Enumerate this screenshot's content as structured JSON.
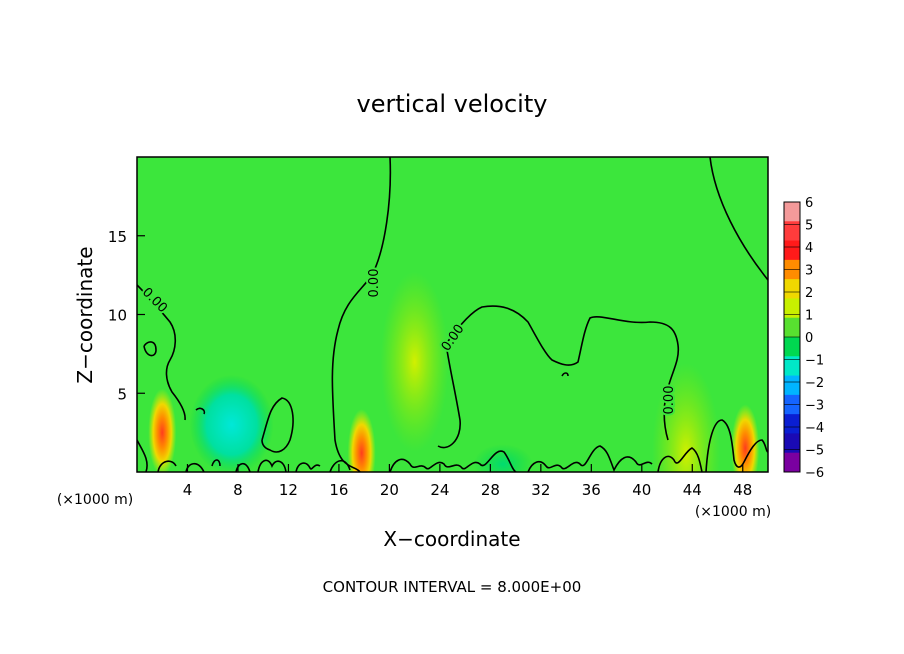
{
  "chart_data": {
    "type": "heatmap",
    "title": "vertical velocity",
    "xlabel": "X−coordinate",
    "ylabel": "Z−coordinate",
    "x_unit_left": "(×1000 m)",
    "x_unit_right": "(×1000 m)",
    "xlim": [
      0,
      50
    ],
    "ylim": [
      0,
      20
    ],
    "x_ticks": [
      4,
      8,
      12,
      16,
      20,
      24,
      28,
      32,
      36,
      40,
      44,
      48
    ],
    "y_ticks": [
      5,
      10,
      15
    ],
    "contour_label": "0.00",
    "footer": "CONTOUR INTERVAL = 8.000E+00",
    "colorbar": {
      "levels": [
        "6",
        "5",
        "4",
        "3",
        "2",
        "1",
        "0",
        "−1",
        "−2",
        "−3",
        "−4",
        "−5",
        "−6"
      ],
      "colors": [
        "#f49a9a",
        "#ff3c3c",
        "#ff1a1a",
        "#ff8c00",
        "#f0d800",
        "#c8f000",
        "#58e030",
        "#00d850",
        "#00e8c8",
        "#00b4ff",
        "#1464ff",
        "#0a1ed2",
        "#1a0ab4",
        "#7a00a0"
      ]
    },
    "hotspots": [
      {
        "x": 2.0,
        "z": 2.5,
        "value": 5
      },
      {
        "x": 17.8,
        "z": 1.2,
        "value": 4
      },
      {
        "x": 22.0,
        "z": 7.0,
        "value": 1
      },
      {
        "x": 43.5,
        "z": 1.2,
        "value": 2
      },
      {
        "x": 48.2,
        "z": 1.5,
        "value": 4
      },
      {
        "x": 7.5,
        "z": 3.0,
        "value": -1.6
      },
      {
        "x": 29.0,
        "z": 0.5,
        "value": -1.5
      }
    ],
    "background_value": 0
  }
}
